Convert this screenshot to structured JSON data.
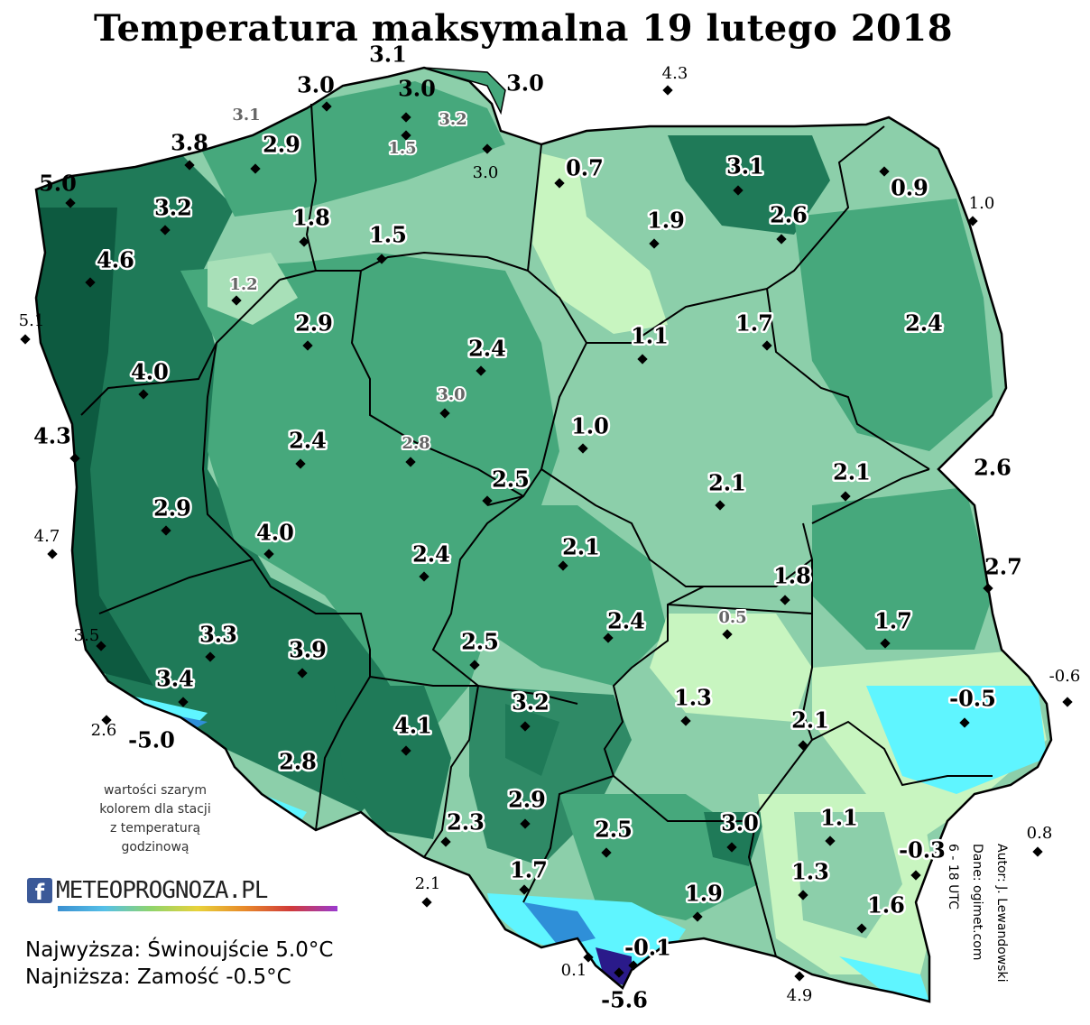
{
  "title": "Temperatura maksymalna 19 lutego 2018",
  "note": [
    "wartości szarym",
    "kolorem dla stacji",
    "z temperaturą",
    "godzinową"
  ],
  "extremes": {
    "highest": "Najwyższa: Świnoujście 5.0°C",
    "lowest": "Najniższa: Zamość -0.5°C"
  },
  "logo": {
    "fb": "f",
    "text": "METEOPROGNOZA.PL"
  },
  "credits": {
    "author": "Autor: J. Lewandowski",
    "data": "Dane: ogimet.com",
    "period": "6 - 18 UTC"
  },
  "legend_colors": {
    "cold_magenta": "#2a1a8a",
    "cold_blue": "#2f8fd8",
    "cyan": "#5ff5ff",
    "pale_green": "#d8ffc8",
    "light_green": "#8ccfaa",
    "mid_green": "#46a87c",
    "dark_green": "#1f7a58",
    "deep_green": "#0d5a40"
  },
  "stations": [
    {
      "v": "3.1",
      "kind": "bold"
    },
    {
      "v": "3.0",
      "kind": "bold"
    },
    {
      "v": "3.0",
      "kind": "bold"
    },
    {
      "v": "3.0",
      "kind": "bold"
    },
    {
      "v": "4.3",
      "kind": "small"
    },
    {
      "v": "3.1",
      "kind": "gray"
    },
    {
      "v": "3.2",
      "kind": "gray"
    },
    {
      "v": "3.8",
      "kind": "bold"
    },
    {
      "v": "2.9",
      "kind": "halo"
    },
    {
      "v": "1.5",
      "kind": "gray"
    },
    {
      "v": "3.0",
      "kind": "small"
    },
    {
      "v": "0.7",
      "kind": "halo"
    },
    {
      "v": "3.1",
      "kind": "halo"
    },
    {
      "v": "0.9",
      "kind": "halo"
    },
    {
      "v": "5.0",
      "kind": "bold"
    },
    {
      "v": "3.2",
      "kind": "halo"
    },
    {
      "v": "1.8",
      "kind": "halo"
    },
    {
      "v": "1.5",
      "kind": "halo"
    },
    {
      "v": "1.9",
      "kind": "halo"
    },
    {
      "v": "2.6",
      "kind": "halo"
    },
    {
      "v": "1.0",
      "kind": "small"
    },
    {
      "v": "4.6",
      "kind": "halo"
    },
    {
      "v": "1.2",
      "kind": "gray"
    },
    {
      "v": "5.1",
      "kind": "small"
    },
    {
      "v": "2.9",
      "kind": "halo"
    },
    {
      "v": "2.4",
      "kind": "halo"
    },
    {
      "v": "1.1",
      "kind": "halo"
    },
    {
      "v": "1.7",
      "kind": "halo"
    },
    {
      "v": "2.4",
      "kind": "halo"
    },
    {
      "v": "4.0",
      "kind": "halo"
    },
    {
      "v": "3.0",
      "kind": "gray"
    },
    {
      "v": "1.0",
      "kind": "halo"
    },
    {
      "v": "4.3",
      "kind": "bold"
    },
    {
      "v": "2.4",
      "kind": "halo"
    },
    {
      "v": "2.8",
      "kind": "gray"
    },
    {
      "v": "2.5",
      "kind": "halo"
    },
    {
      "v": "2.1",
      "kind": "halo"
    },
    {
      "v": "2.1",
      "kind": "halo"
    },
    {
      "v": "2.6",
      "kind": "bold"
    },
    {
      "v": "2.9",
      "kind": "halo"
    },
    {
      "v": "4.7",
      "kind": "small"
    },
    {
      "v": "4.0",
      "kind": "halo"
    },
    {
      "v": "2.4",
      "kind": "halo"
    },
    {
      "v": "2.1",
      "kind": "halo"
    },
    {
      "v": "1.8",
      "kind": "halo"
    },
    {
      "v": "2.7",
      "kind": "bold"
    },
    {
      "v": "0.5",
      "kind": "gray"
    },
    {
      "v": "1.7",
      "kind": "halo"
    },
    {
      "v": "2.4",
      "kind": "halo"
    },
    {
      "v": "3.5",
      "kind": "small"
    },
    {
      "v": "3.3",
      "kind": "halo"
    },
    {
      "v": "3.9",
      "kind": "halo"
    },
    {
      "v": "2.5",
      "kind": "halo"
    },
    {
      "v": "-0.6",
      "kind": "small"
    },
    {
      "v": "3.4",
      "kind": "halo"
    },
    {
      "v": "1.3",
      "kind": "halo"
    },
    {
      "v": "-0.5",
      "kind": "halo"
    },
    {
      "v": "3.2",
      "kind": "halo"
    },
    {
      "v": "2.1",
      "kind": "halo"
    },
    {
      "v": "2.6",
      "kind": "small"
    },
    {
      "v": "-5.0",
      "kind": "bold"
    },
    {
      "v": "4.1",
      "kind": "halo"
    },
    {
      "v": "2.8",
      "kind": "halo"
    },
    {
      "v": "2.9",
      "kind": "halo"
    },
    {
      "v": "1.1",
      "kind": "halo"
    },
    {
      "v": "2.3",
      "kind": "halo"
    },
    {
      "v": "2.5",
      "kind": "halo"
    },
    {
      "v": "3.0",
      "kind": "halo"
    },
    {
      "v": "-0.3",
      "kind": "halo"
    },
    {
      "v": "0.8",
      "kind": "small"
    },
    {
      "v": "1.7",
      "kind": "halo"
    },
    {
      "v": "1.3",
      "kind": "halo"
    },
    {
      "v": "2.1",
      "kind": "small"
    },
    {
      "v": "1.9",
      "kind": "halo"
    },
    {
      "v": "1.6",
      "kind": "halo"
    },
    {
      "v": "-0.1",
      "kind": "halo"
    },
    {
      "v": "0.1",
      "kind": "small"
    },
    {
      "v": "-5.6",
      "kind": "bold"
    },
    {
      "v": "4.9",
      "kind": "small"
    }
  ]
}
